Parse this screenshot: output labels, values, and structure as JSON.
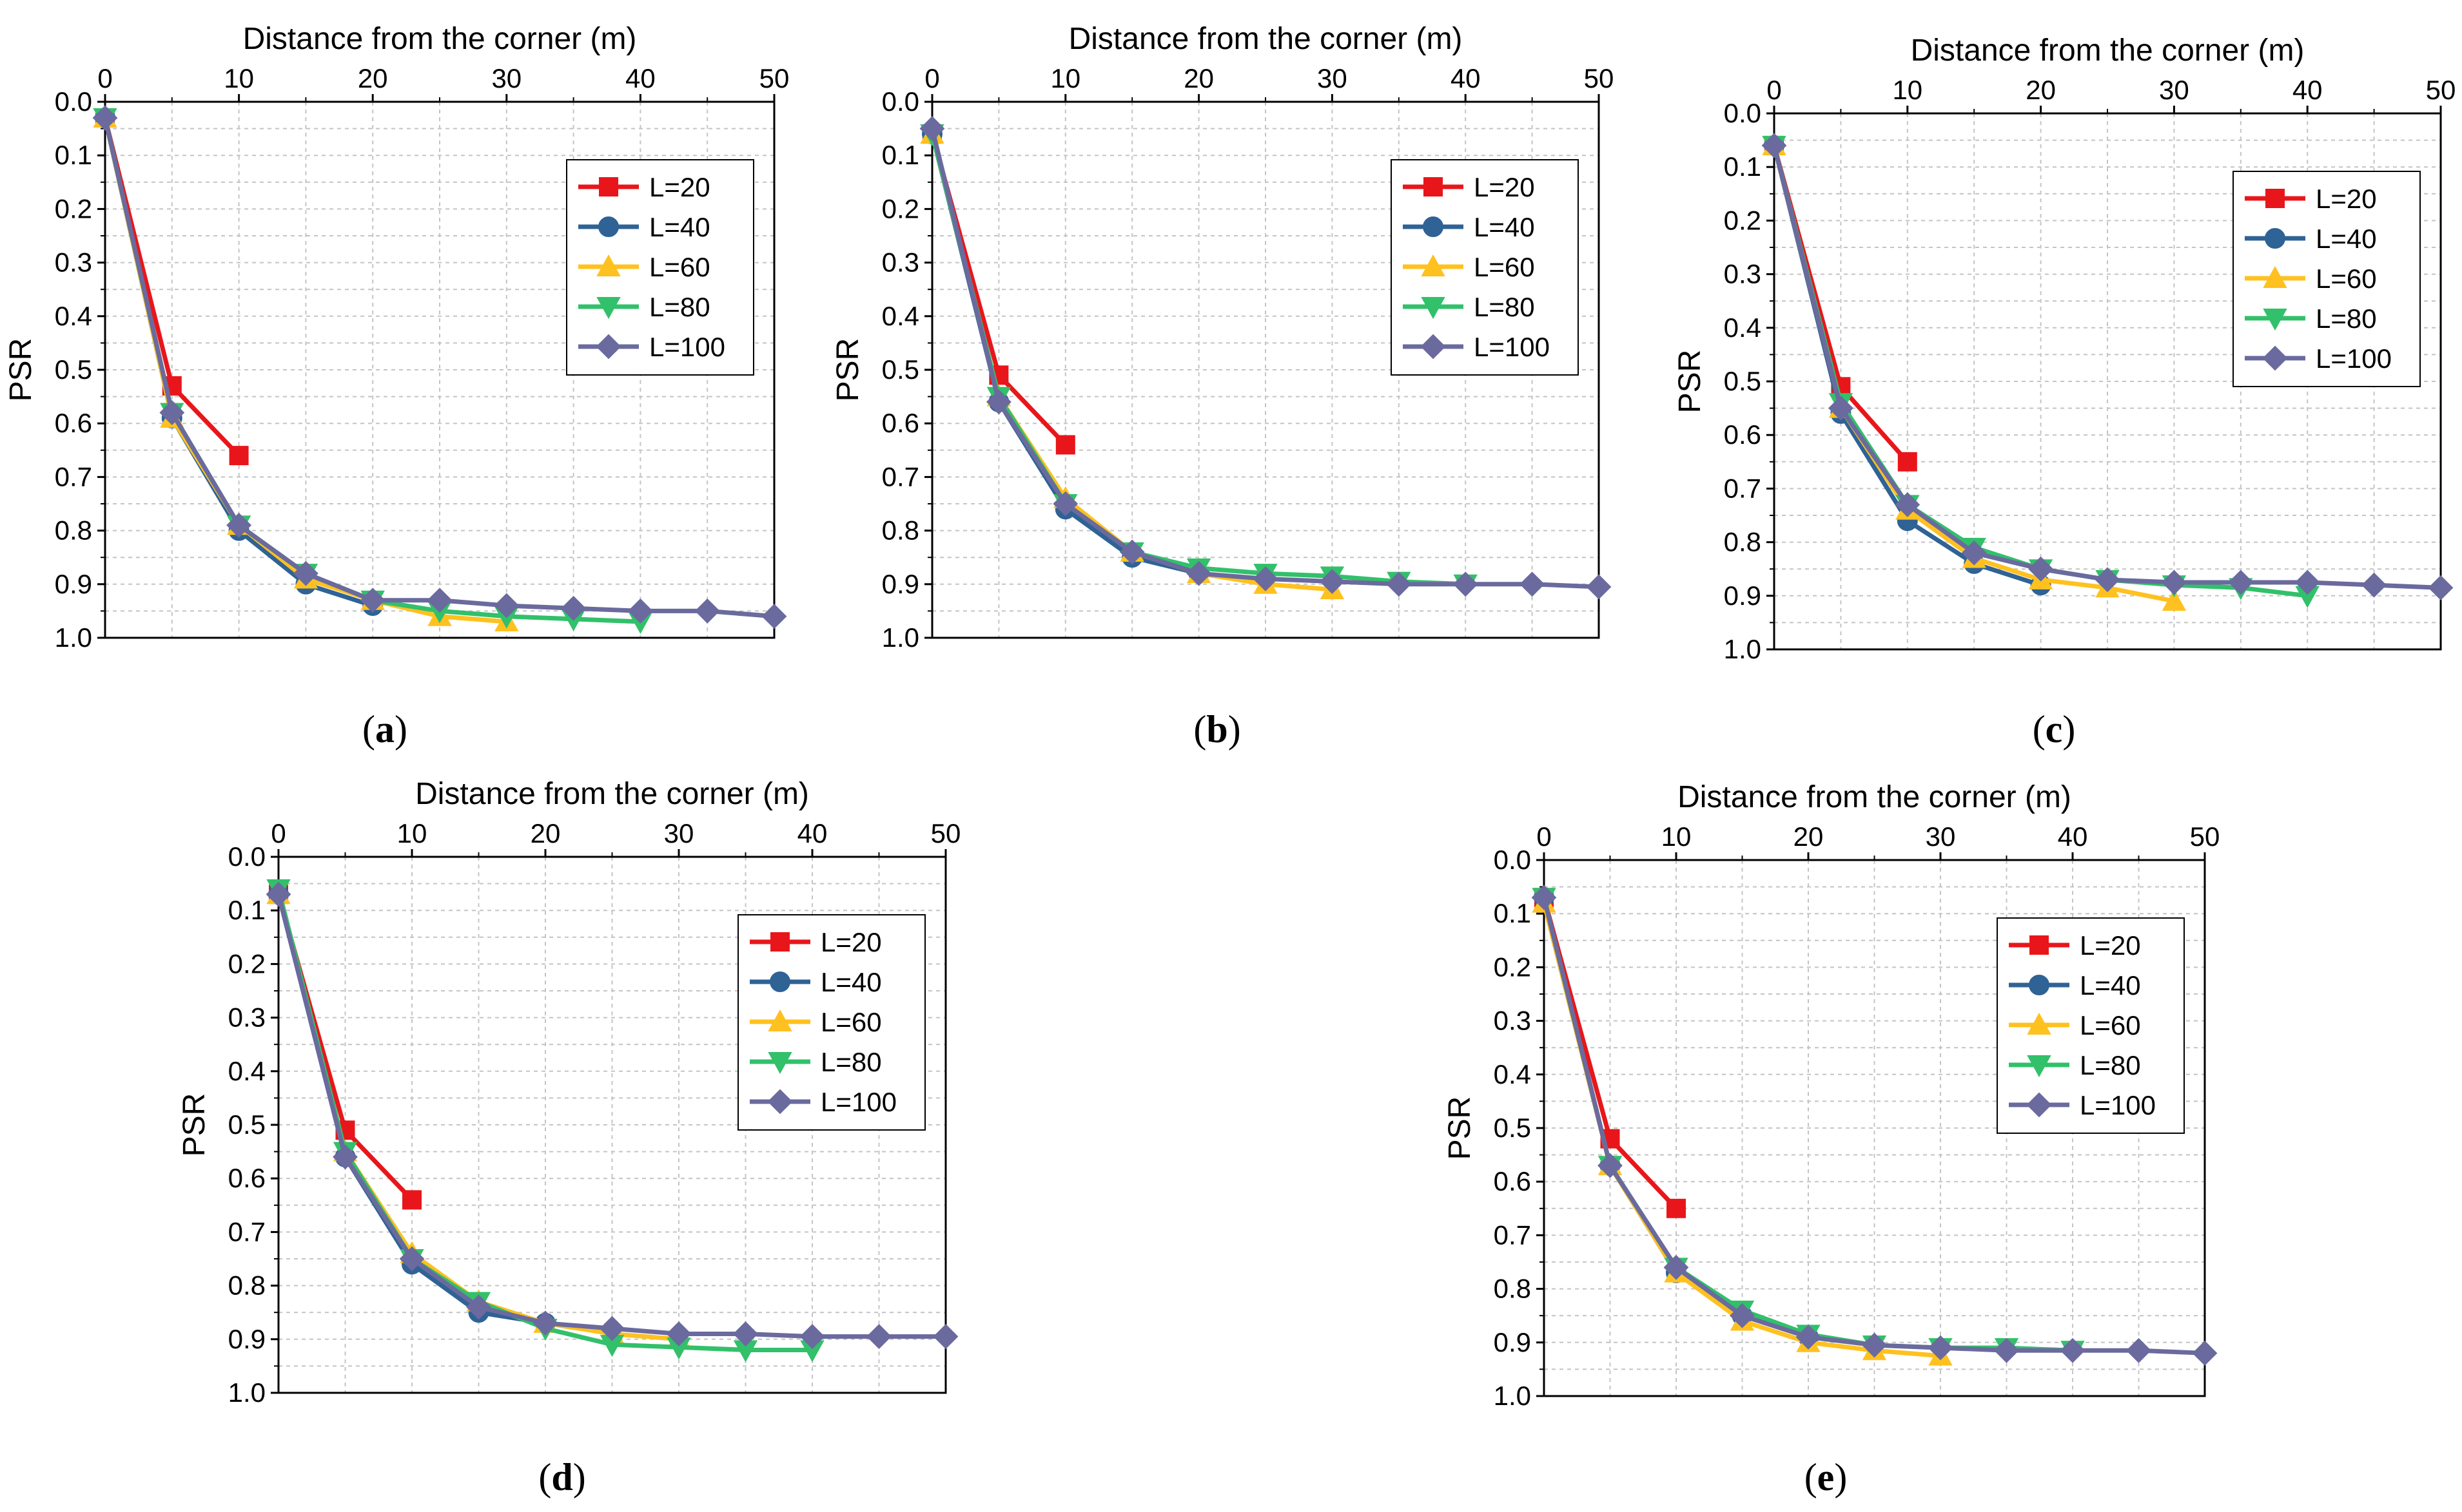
{
  "figure": {
    "colors": {
      "L=20": "#e8161b",
      "L=40": "#2f6295",
      "L=60": "#ffc11f",
      "L=80": "#32c06a",
      "L=100": "#6a6a9e",
      "grid": "#c4c4c4"
    }
  },
  "chart_data": [
    {
      "panel": "(a)",
      "panel_letter": "a",
      "type": "line",
      "title": "",
      "xlabel": "Distance from the corner (m)",
      "ylabel": "PSR",
      "xlim": [
        0,
        50
      ],
      "ylim": [
        0.0,
        1.0
      ],
      "y_inverted": true,
      "x_axis_position": "top",
      "grid": true,
      "legend_position": "top-right",
      "xticks": [
        "0",
        "10",
        "20",
        "30",
        "40",
        "50"
      ],
      "yticks": [
        "0.0",
        "0.1",
        "0.2",
        "0.3",
        "0.4",
        "0.5",
        "0.6",
        "0.7",
        "0.8",
        "0.9",
        "1.0"
      ],
      "series": [
        {
          "name": "L=20",
          "marker": "square",
          "x": [
            0,
            5,
            10
          ],
          "y": [
            0.03,
            0.53,
            0.66
          ]
        },
        {
          "name": "L=40",
          "marker": "circle",
          "x": [
            0,
            5,
            10,
            15,
            20
          ],
          "y": [
            0.03,
            0.59,
            0.8,
            0.9,
            0.94
          ]
        },
        {
          "name": "L=60",
          "marker": "triangle-up",
          "x": [
            0,
            5,
            10,
            15,
            20,
            25,
            30
          ],
          "y": [
            0.03,
            0.59,
            0.79,
            0.89,
            0.93,
            0.96,
            0.97
          ]
        },
        {
          "name": "L=80",
          "marker": "triangle-down",
          "x": [
            0,
            5,
            10,
            15,
            20,
            25,
            30,
            35,
            40
          ],
          "y": [
            0.03,
            0.58,
            0.79,
            0.88,
            0.93,
            0.95,
            0.96,
            0.965,
            0.97
          ]
        },
        {
          "name": "L=100",
          "marker": "diamond",
          "x": [
            0,
            5,
            10,
            15,
            20,
            25,
            30,
            35,
            40,
            45,
            50
          ],
          "y": [
            0.03,
            0.58,
            0.79,
            0.88,
            0.93,
            0.93,
            0.94,
            0.945,
            0.95,
            0.95,
            0.96
          ]
        }
      ]
    },
    {
      "panel": "(b)",
      "panel_letter": "b",
      "type": "line",
      "title": "",
      "xlabel": "Distance from the corner (m)",
      "ylabel": "PSR",
      "xlim": [
        0,
        50
      ],
      "ylim": [
        0.0,
        1.0
      ],
      "y_inverted": true,
      "x_axis_position": "top",
      "grid": true,
      "legend_position": "top-right",
      "xticks": [
        "0",
        "10",
        "20",
        "30",
        "40",
        "50"
      ],
      "yticks": [
        "0.0",
        "0.1",
        "0.2",
        "0.3",
        "0.4",
        "0.5",
        "0.6",
        "0.7",
        "0.8",
        "0.9",
        "1.0"
      ],
      "series": [
        {
          "name": "L=20",
          "marker": "square",
          "x": [
            0,
            5,
            10
          ],
          "y": [
            0.06,
            0.51,
            0.64
          ]
        },
        {
          "name": "L=40",
          "marker": "circle",
          "x": [
            0,
            5,
            10,
            15,
            20
          ],
          "y": [
            0.06,
            0.56,
            0.76,
            0.85,
            0.88
          ]
        },
        {
          "name": "L=60",
          "marker": "triangle-up",
          "x": [
            0,
            5,
            10,
            15,
            20,
            25,
            30
          ],
          "y": [
            0.06,
            0.55,
            0.74,
            0.84,
            0.88,
            0.9,
            0.91
          ]
        },
        {
          "name": "L=80",
          "marker": "triangle-down",
          "x": [
            0,
            5,
            10,
            15,
            20,
            25,
            30,
            35,
            40
          ],
          "y": [
            0.06,
            0.55,
            0.75,
            0.84,
            0.87,
            0.88,
            0.885,
            0.895,
            0.9
          ]
        },
        {
          "name": "L=100",
          "marker": "diamond",
          "x": [
            0,
            5,
            10,
            15,
            20,
            25,
            30,
            35,
            40,
            45,
            50
          ],
          "y": [
            0.05,
            0.56,
            0.75,
            0.84,
            0.88,
            0.89,
            0.895,
            0.9,
            0.9,
            0.9,
            0.905
          ]
        }
      ]
    },
    {
      "panel": "(c)",
      "panel_letter": "c",
      "type": "line",
      "title": "",
      "xlabel": "Distance from the corner (m)",
      "ylabel": "PSR",
      "xlim": [
        0,
        50
      ],
      "ylim": [
        0.0,
        1.0
      ],
      "y_inverted": true,
      "x_axis_position": "top",
      "grid": true,
      "legend_position": "top-right",
      "xticks": [
        "0",
        "10",
        "20",
        "30",
        "40",
        "50"
      ],
      "yticks": [
        "0.0",
        "0.1",
        "0.2",
        "0.3",
        "0.4",
        "0.5",
        "0.6",
        "0.7",
        "0.8",
        "0.9",
        "1.0"
      ],
      "series": [
        {
          "name": "L=20",
          "marker": "square",
          "x": [
            0,
            5,
            10
          ],
          "y": [
            0.06,
            0.51,
            0.65
          ]
        },
        {
          "name": "L=40",
          "marker": "circle",
          "x": [
            0,
            5,
            10,
            15,
            20
          ],
          "y": [
            0.06,
            0.56,
            0.76,
            0.84,
            0.88
          ]
        },
        {
          "name": "L=60",
          "marker": "triangle-up",
          "x": [
            0,
            5,
            10,
            15,
            20,
            25,
            30
          ],
          "y": [
            0.06,
            0.55,
            0.74,
            0.83,
            0.87,
            0.885,
            0.91
          ]
        },
        {
          "name": "L=80",
          "marker": "triangle-down",
          "x": [
            0,
            5,
            10,
            15,
            20,
            25,
            30,
            35,
            40
          ],
          "y": [
            0.06,
            0.54,
            0.73,
            0.81,
            0.85,
            0.87,
            0.88,
            0.885,
            0.9
          ]
        },
        {
          "name": "L=100",
          "marker": "diamond",
          "x": [
            0,
            5,
            10,
            15,
            20,
            25,
            30,
            35,
            40,
            45,
            50
          ],
          "y": [
            0.06,
            0.55,
            0.73,
            0.82,
            0.85,
            0.87,
            0.875,
            0.875,
            0.875,
            0.88,
            0.885
          ]
        }
      ]
    },
    {
      "panel": "(d)",
      "panel_letter": "d",
      "type": "line",
      "title": "",
      "xlabel": "Distance from the corner (m)",
      "ylabel": "PSR",
      "xlim": [
        0,
        50
      ],
      "ylim": [
        0.0,
        1.0
      ],
      "y_inverted": true,
      "x_axis_position": "top",
      "grid": true,
      "legend_position": "top-right",
      "xticks": [
        "0",
        "10",
        "20",
        "30",
        "40",
        "50"
      ],
      "yticks": [
        "0.0",
        "0.1",
        "0.2",
        "0.3",
        "0.4",
        "0.5",
        "0.6",
        "0.7",
        "0.8",
        "0.9",
        "1.0"
      ],
      "series": [
        {
          "name": "L=20",
          "marker": "square",
          "x": [
            0,
            5,
            10
          ],
          "y": [
            0.07,
            0.51,
            0.64
          ]
        },
        {
          "name": "L=40",
          "marker": "circle",
          "x": [
            0,
            5,
            10,
            15,
            20
          ],
          "y": [
            0.07,
            0.56,
            0.76,
            0.85,
            0.87
          ]
        },
        {
          "name": "L=60",
          "marker": "triangle-up",
          "x": [
            0,
            5,
            10,
            15,
            20,
            25,
            30
          ],
          "y": [
            0.07,
            0.55,
            0.74,
            0.83,
            0.87,
            0.89,
            0.9
          ]
        },
        {
          "name": "L=80",
          "marker": "triangle-down",
          "x": [
            0,
            5,
            10,
            15,
            20,
            25,
            30,
            35,
            40
          ],
          "y": [
            0.06,
            0.55,
            0.75,
            0.83,
            0.88,
            0.91,
            0.915,
            0.92,
            0.92
          ]
        },
        {
          "name": "L=100",
          "marker": "diamond",
          "x": [
            0,
            5,
            10,
            15,
            20,
            25,
            30,
            35,
            40,
            45,
            50
          ],
          "y": [
            0.07,
            0.56,
            0.75,
            0.84,
            0.87,
            0.88,
            0.89,
            0.89,
            0.895,
            0.895,
            0.895
          ]
        }
      ]
    },
    {
      "panel": "(e)",
      "panel_letter": "e",
      "type": "line",
      "title": "",
      "xlabel": "Distance from the corner (m)",
      "ylabel": "PSR",
      "xlim": [
        0,
        50
      ],
      "ylim": [
        0.0,
        1.0
      ],
      "y_inverted": true,
      "x_axis_position": "top",
      "grid": true,
      "legend_position": "top-right",
      "xticks": [
        "0",
        "10",
        "20",
        "30",
        "40",
        "50"
      ],
      "yticks": [
        "0.0",
        "0.1",
        "0.2",
        "0.3",
        "0.4",
        "0.5",
        "0.6",
        "0.7",
        "0.8",
        "0.9",
        "1.0"
      ],
      "series": [
        {
          "name": "L=20",
          "marker": "square",
          "x": [
            0,
            5,
            10
          ],
          "y": [
            0.07,
            0.52,
            0.65
          ]
        },
        {
          "name": "L=40",
          "marker": "circle",
          "x": [
            0,
            5,
            10,
            15,
            20
          ],
          "y": [
            0.07,
            0.57,
            0.77,
            0.85,
            0.89
          ]
        },
        {
          "name": "L=60",
          "marker": "triangle-up",
          "x": [
            0,
            5,
            10,
            15,
            20,
            25,
            30
          ],
          "y": [
            0.08,
            0.57,
            0.77,
            0.86,
            0.9,
            0.915,
            0.925
          ]
        },
        {
          "name": "L=80",
          "marker": "triangle-down",
          "x": [
            0,
            5,
            10,
            15,
            20,
            25,
            30,
            35,
            40
          ],
          "y": [
            0.07,
            0.57,
            0.76,
            0.84,
            0.885,
            0.905,
            0.91,
            0.91,
            0.915
          ]
        },
        {
          "name": "L=100",
          "marker": "diamond",
          "x": [
            0,
            5,
            10,
            15,
            20,
            25,
            30,
            35,
            40,
            45,
            50
          ],
          "y": [
            0.07,
            0.57,
            0.76,
            0.85,
            0.89,
            0.905,
            0.91,
            0.915,
            0.915,
            0.915,
            0.92
          ]
        }
      ]
    }
  ]
}
